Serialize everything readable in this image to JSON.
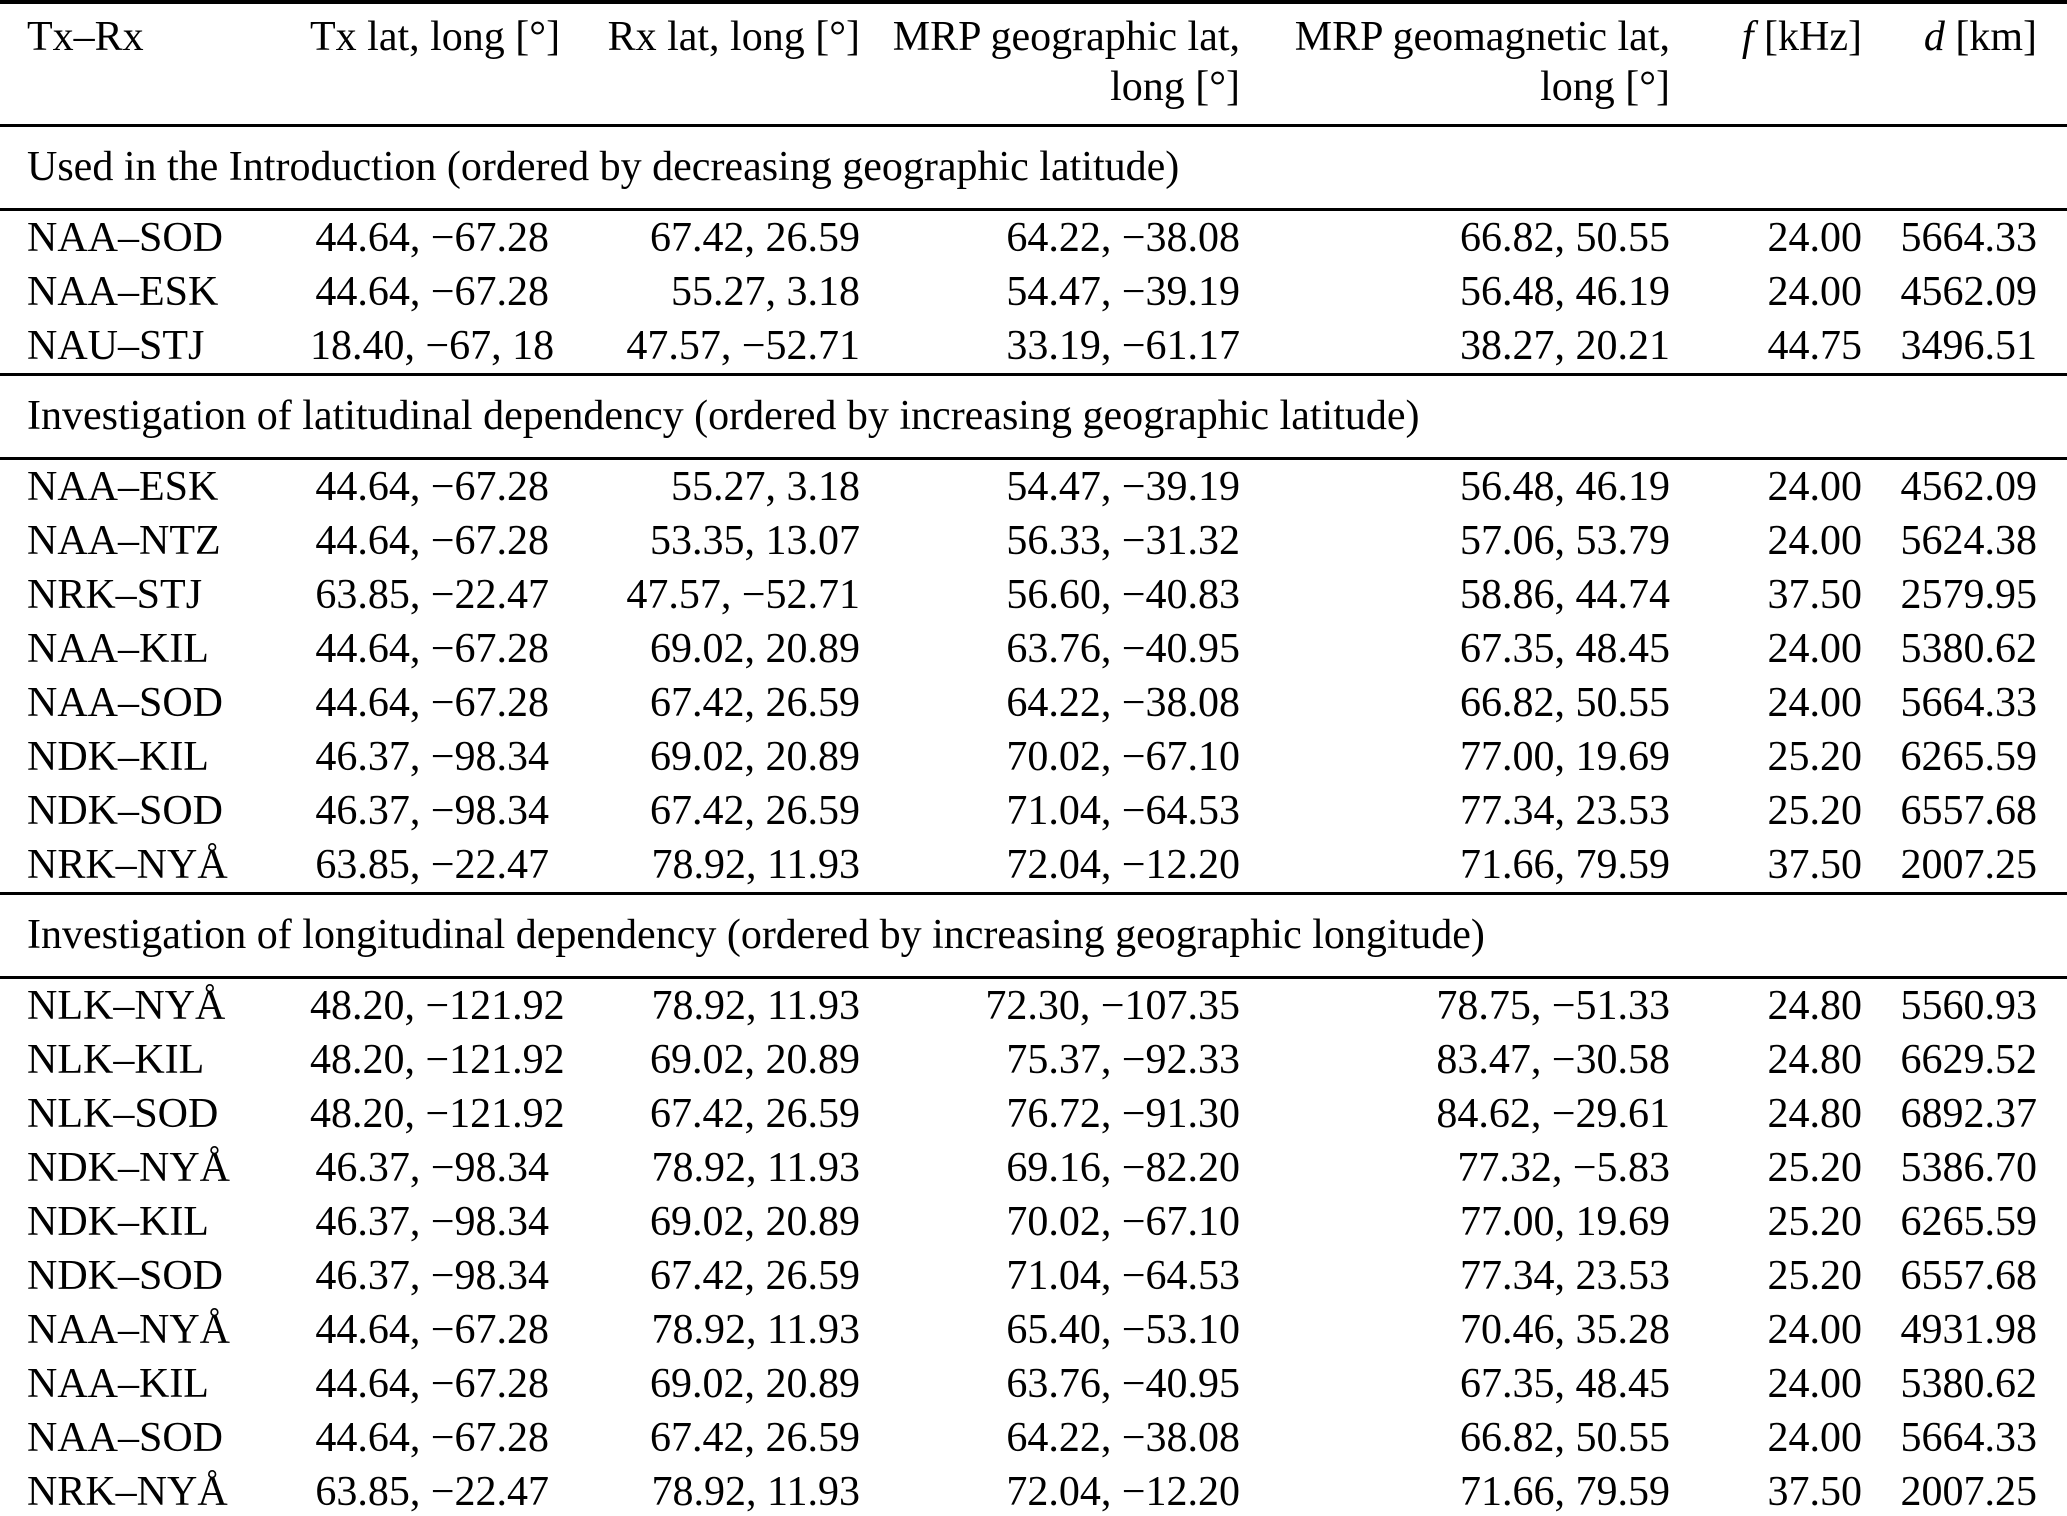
{
  "table": {
    "colors": {
      "text": "#000000",
      "background": "#ffffff",
      "rule": "#000000"
    },
    "header": {
      "tx_rx": "Tx–Rx",
      "tx_lat_long": "Tx lat, long [°]",
      "rx_lat_long": "Rx lat, long [°]",
      "mrp_geographic_line1": "MRP geographic lat,",
      "mrp_geographic_line2": "long [°]",
      "mrp_geomagnetic_line1": "MRP geomagnetic lat,",
      "mrp_geomagnetic_line2": "long [°]",
      "frequency_symbol": "f",
      "frequency_unit": " [kHz]",
      "distance_symbol": "d",
      "distance_unit": " [km]"
    },
    "sections": [
      {
        "title": "Used in the Introduction (ordered by decreasing geographic latitude)",
        "rows": [
          [
            "NAA–SOD",
            "44.64, −67.28",
            "67.42, 26.59",
            "64.22, −38.08",
            "66.82, 50.55",
            "24.00",
            "5664.33"
          ],
          [
            "NAA–ESK",
            "44.64, −67.28",
            "55.27, 3.18",
            "54.47, −39.19",
            "56.48, 46.19",
            "24.00",
            "4562.09"
          ],
          [
            "NAU–STJ",
            "18.40, −67, 18",
            "47.57, −52.71",
            "33.19, −61.17",
            "38.27, 20.21",
            "44.75",
            "3496.51"
          ]
        ]
      },
      {
        "title": "Investigation of latitudinal dependency (ordered by increasing geographic latitude)",
        "rows": [
          [
            "NAA–ESK",
            "44.64, −67.28",
            "55.27, 3.18",
            "54.47, −39.19",
            "56.48, 46.19",
            "24.00",
            "4562.09"
          ],
          [
            "NAA–NTZ",
            "44.64, −67.28",
            "53.35, 13.07",
            "56.33, −31.32",
            "57.06, 53.79",
            "24.00",
            "5624.38"
          ],
          [
            "NRK–STJ",
            "63.85, −22.47",
            "47.57, −52.71",
            "56.60, −40.83",
            "58.86, 44.74",
            "37.50",
            "2579.95"
          ],
          [
            "NAA–KIL",
            "44.64, −67.28",
            "69.02, 20.89",
            "63.76, −40.95",
            "67.35, 48.45",
            "24.00",
            "5380.62"
          ],
          [
            "NAA–SOD",
            "44.64, −67.28",
            "67.42, 26.59",
            "64.22, −38.08",
            "66.82, 50.55",
            "24.00",
            "5664.33"
          ],
          [
            "NDK–KIL",
            "46.37, −98.34",
            "69.02, 20.89",
            "70.02, −67.10",
            "77.00, 19.69",
            "25.20",
            "6265.59"
          ],
          [
            "NDK–SOD",
            "46.37, −98.34",
            "67.42, 26.59",
            "71.04, −64.53",
            "77.34, 23.53",
            "25.20",
            "6557.68"
          ],
          [
            "NRK–NYÅ",
            "63.85, −22.47",
            "78.92, 11.93",
            "72.04, −12.20",
            "71.66, 79.59",
            "37.50",
            "2007.25"
          ]
        ]
      },
      {
        "title": "Investigation of longitudinal dependency (ordered by increasing geographic longitude)",
        "rows": [
          [
            "NLK–NYÅ",
            "48.20, −121.92",
            "78.92, 11.93",
            "72.30, −107.35",
            "78.75, −51.33",
            "24.80",
            "5560.93"
          ],
          [
            "NLK–KIL",
            "48.20, −121.92",
            "69.02, 20.89",
            "75.37, −92.33",
            "83.47, −30.58",
            "24.80",
            "6629.52"
          ],
          [
            "NLK–SOD",
            "48.20, −121.92",
            "67.42, 26.59",
            "76.72, −91.30",
            "84.62, −29.61",
            "24.80",
            "6892.37"
          ],
          [
            "NDK–NYÅ",
            "46.37, −98.34",
            "78.92, 11.93",
            "69.16, −82.20",
            "77.32, −5.83",
            "25.20",
            "5386.70"
          ],
          [
            "NDK–KIL",
            "46.37, −98.34",
            "69.02, 20.89",
            "70.02, −67.10",
            "77.00, 19.69",
            "25.20",
            "6265.59"
          ],
          [
            "NDK–SOD",
            "46.37, −98.34",
            "67.42, 26.59",
            "71.04, −64.53",
            "77.34, 23.53",
            "25.20",
            "6557.68"
          ],
          [
            "NAA–NYÅ",
            "44.64, −67.28",
            "78.92, 11.93",
            "65.40, −53.10",
            "70.46, 35.28",
            "24.00",
            "4931.98"
          ],
          [
            "NAA–KIL",
            "44.64, −67.28",
            "69.02, 20.89",
            "63.76, −40.95",
            "67.35, 48.45",
            "24.00",
            "5380.62"
          ],
          [
            "NAA–SOD",
            "44.64, −67.28",
            "67.42, 26.59",
            "64.22, −38.08",
            "66.82, 50.55",
            "24.00",
            "5664.33"
          ],
          [
            "NRK–NYÅ",
            "63.85, −22.47",
            "78.92, 11.93",
            "72.04, −12.20",
            "71.66, 79.59",
            "37.50",
            "2007.25"
          ]
        ]
      }
    ]
  }
}
